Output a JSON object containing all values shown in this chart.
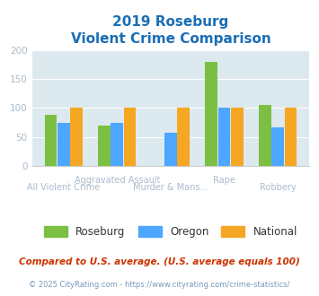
{
  "title_line1": "2019 Roseburg",
  "title_line2": "Violent Crime Comparison",
  "categories": [
    "All Violent Crime",
    "Aggravated Assault",
    "Murder & Mans...",
    "Rape",
    "Robbery"
  ],
  "roseburg": [
    88,
    70,
    0,
    180,
    105
  ],
  "oregon": [
    75,
    75,
    57,
    100,
    67
  ],
  "national": [
    100,
    100,
    100,
    100,
    100
  ],
  "roseburg_color": "#7bc043",
  "oregon_color": "#4da6ff",
  "national_color": "#f5a623",
  "bg_color": "#dce9ef",
  "ylim": [
    0,
    200
  ],
  "yticks": [
    0,
    50,
    100,
    150,
    200
  ],
  "footer_text": "Compared to U.S. average. (U.S. average equals 100)",
  "copyright_text": "© 2025 CityRating.com - https://www.cityrating.com/crime-statistics/",
  "title_color": "#1a6eb5",
  "footer_color": "#cc3300",
  "copyright_color": "#7799bb",
  "tick_label_color": "#aabbcc",
  "legend_labels": [
    "Roseburg",
    "Oregon",
    "National"
  ],
  "legend_text_color": "#333333",
  "xtick_top": [
    "",
    "Aggravated Assault",
    "",
    "Rape",
    ""
  ],
  "xtick_bot": [
    "All Violent Crime",
    "",
    "Murder & Mans...",
    "",
    "Robbery"
  ]
}
